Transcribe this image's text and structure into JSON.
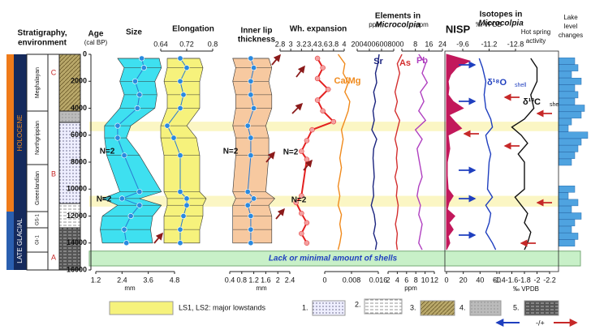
{
  "stratigraphy": {
    "title": [
      "Stratigraphy,",
      "environment"
    ],
    "epochs": [
      "HOLOCENE",
      "LATE GLACIAL"
    ],
    "stages": [
      "Meghalayan",
      "Northgrippian",
      "Greenlandian",
      "GS-1",
      "GI-1"
    ],
    "units": [
      "C",
      "B",
      "A"
    ]
  },
  "age_axis": {
    "label": [
      "Age",
      "(cal BP)"
    ],
    "ylim": [
      0,
      16000
    ],
    "yticks": [
      0,
      2000,
      4000,
      6000,
      8000,
      10000,
      12000,
      14000,
      16000
    ]
  },
  "chart_data": [
    {
      "type": "range",
      "title": [
        "Size"
      ],
      "unit": "mm",
      "tick_side": "bottom",
      "color": "#3ee0f0",
      "xlim": [
        1.2,
        4.8
      ],
      "xticks": [
        1.2,
        2.4,
        3.6,
        4.8
      ],
      "ages": [
        300,
        1000,
        2000,
        3000,
        4000,
        5300,
        6200,
        7500,
        10200,
        10700,
        11200,
        12000,
        13000,
        14000
      ],
      "low": [
        2.2,
        2.5,
        2.3,
        2.5,
        2.3,
        1.6,
        1.6,
        1.7,
        2.3,
        1.5,
        2.2,
        1.5,
        1.4,
        1.5
      ],
      "high": [
        4.1,
        4.2,
        3.9,
        4.0,
        3.9,
        2.8,
        2.6,
        3.2,
        4.2,
        3.2,
        4.2,
        3.8,
        3.7,
        3.8
      ],
      "values": [
        3.3,
        3.4,
        3.0,
        3.2,
        3.1,
        2.2,
        2.2,
        2.5,
        3.2,
        2.4,
        3.2,
        2.8,
        2.5,
        2.6
      ]
    },
    {
      "type": "range",
      "title": [
        "Elongation"
      ],
      "tick_side": "top",
      "color": "#f6f27c",
      "xlim": [
        0.64,
        0.8
      ],
      "xticks": [
        0.64,
        0.72,
        0.8
      ],
      "ages": [
        300,
        1000,
        2000,
        3000,
        4000,
        5300,
        6200,
        7500,
        10200,
        10700,
        11200,
        12000,
        13000,
        14000
      ],
      "low": [
        0.66,
        0.66,
        0.65,
        0.66,
        0.66,
        0.64,
        0.64,
        0.65,
        0.65,
        0.66,
        0.66,
        0.65,
        0.65,
        0.65
      ],
      "high": [
        0.76,
        0.77,
        0.76,
        0.76,
        0.76,
        0.72,
        0.75,
        0.76,
        0.76,
        0.78,
        0.77,
        0.77,
        0.76,
        0.76
      ],
      "values": [
        0.7,
        0.72,
        0.7,
        0.71,
        0.7,
        0.66,
        0.68,
        0.7,
        0.7,
        0.72,
        0.72,
        0.71,
        0.7,
        0.7
      ]
    },
    {
      "type": "range",
      "title": [
        "Inner lip",
        "thickness"
      ],
      "unit": "mm",
      "tick_side": "bottom",
      "color": "#f7c9a0",
      "xlim": [
        0.4,
        2.4
      ],
      "xticks": [
        0.4,
        0.8,
        1.2,
        1.6,
        2,
        2.4
      ],
      "ages": [
        300,
        1000,
        2000,
        3000,
        4000,
        5300,
        6200,
        7500,
        10200,
        10700,
        11200,
        12000,
        13000,
        14000
      ],
      "low": [
        0.5,
        0.6,
        0.5,
        0.6,
        0.6,
        0.5,
        0.6,
        0.6,
        0.5,
        0.6,
        0.5,
        0.5,
        0.5,
        0.5
      ],
      "high": [
        1.7,
        1.8,
        1.7,
        1.8,
        1.8,
        1.6,
        1.7,
        1.7,
        1.6,
        1.9,
        1.7,
        1.8,
        1.8,
        1.8
      ],
      "values": [
        1.1,
        1.2,
        1.1,
        1.1,
        1.2,
        1.0,
        1.1,
        1.1,
        1.0,
        1.2,
        1.0,
        1.1,
        1.1,
        1.1
      ]
    },
    {
      "type": "dots",
      "title": [
        "Wh. expansion"
      ],
      "tick_side": "top",
      "color": "#e32020",
      "xlim": [
        2.8,
        4
      ],
      "xticks": [
        2.8,
        3,
        3.2,
        3.4,
        3.6,
        3.8,
        4
      ],
      "ages": [
        300,
        1000,
        1800,
        2600,
        3400,
        4200,
        5000,
        5600,
        6400,
        7200,
        7800,
        10500,
        11000,
        11800,
        12500,
        13300,
        14000
      ],
      "values": [
        3.5,
        3.6,
        3.5,
        3.7,
        3.5,
        3.6,
        3.8,
        3.4,
        3.3,
        3.2,
        3.3,
        3.2,
        3.1,
        3.2,
        3.3,
        3.2,
        3.3
      ]
    },
    {
      "type": "line",
      "label": "Ca/Mg",
      "tick_side": "bottom",
      "color": "#f08a1c",
      "xlim": [
        0,
        0.016
      ],
      "xticks": [
        0,
        0.008,
        0.016
      ],
      "ages": [
        0,
        700,
        1400,
        2100,
        2800,
        3500,
        4200,
        4900,
        5600,
        6300,
        7000,
        7700,
        8400,
        9100,
        9800,
        10500,
        11200,
        11900,
        12600,
        13300,
        14000,
        14500
      ],
      "values": [
        0.004,
        0.006,
        0.0055,
        0.007,
        0.006,
        0.0075,
        0.007,
        0.006,
        0.005,
        0.0055,
        0.005,
        0.0045,
        0.005,
        0.0045,
        0.004,
        0.0045,
        0.004,
        0.005,
        0.0045,
        0.005,
        0.0045,
        0.004
      ]
    },
    {
      "type": "line",
      "label": "Sr",
      "title": [
        "Elements in",
        "Microcolpia"
      ],
      "unit": "ppm",
      "tick_side": "top",
      "color": "#1a237e",
      "xlim": [
        200,
        800
      ],
      "xticks": [
        200,
        400,
        600,
        800
      ],
      "ages": [
        0,
        700,
        1400,
        2100,
        2800,
        3500,
        4200,
        4900,
        5600,
        6300,
        7000,
        7700,
        8400,
        9100,
        9800,
        10500,
        11200,
        11900,
        12600,
        13300,
        14000,
        14500
      ],
      "values": [
        560,
        540,
        500,
        520,
        470,
        500,
        460,
        480,
        440,
        520,
        470,
        460,
        470,
        480,
        460,
        470,
        430,
        480,
        500,
        470,
        520,
        500
      ]
    },
    {
      "type": "line",
      "label": "As",
      "unit": "ppm",
      "tick_side": "bottom",
      "color": "#d32f2f",
      "xlim": [
        2,
        12
      ],
      "xticks": [
        2,
        4,
        6,
        8,
        10,
        12
      ],
      "ages": [
        0,
        700,
        1400,
        2100,
        2800,
        3500,
        4200,
        4900,
        5600,
        6300,
        7000,
        7700,
        8400,
        9100,
        9800,
        10500,
        11200,
        11900,
        12600,
        13300,
        14000,
        14500
      ],
      "values": [
        5,
        4,
        4.5,
        4,
        3.5,
        4,
        3.5,
        4.5,
        4,
        3.5,
        4,
        3.8,
        4,
        3.5,
        4,
        3.8,
        4.2,
        4,
        3.6,
        4,
        3.8,
        4
      ]
    },
    {
      "type": "line",
      "label": "Pb",
      "unit": "ppm",
      "tick_side": "top",
      "color": "#b040c0",
      "xlim": [
        0,
        24
      ],
      "xticks": [
        0,
        8,
        16,
        24
      ],
      "ages": [
        0,
        700,
        1400,
        2100,
        2800,
        3500,
        4200,
        4900,
        5600,
        6300,
        7000,
        7700,
        8400,
        9100,
        9800,
        10500,
        11200,
        11900,
        12600,
        13300,
        14000,
        14500
      ],
      "values": [
        10,
        14,
        12,
        15,
        11,
        13,
        10,
        14,
        8,
        12,
        9,
        10,
        11,
        12,
        10,
        9,
        11,
        10,
        12,
        11,
        10,
        12
      ]
    },
    {
      "type": "area",
      "title": [
        "NISP"
      ],
      "tick_side": "bottom",
      "color": "#c2185b",
      "xlim": [
        0,
        60
      ],
      "xticks": [
        0,
        20,
        40,
        60
      ],
      "ages": [
        0,
        500,
        1000,
        1500,
        2000,
        2500,
        3000,
        3500,
        4000,
        4500,
        5000,
        5500,
        6000,
        7000,
        8000,
        9000,
        10000,
        10500,
        11000,
        11500,
        12000,
        12500,
        13000,
        13500,
        14000,
        14500
      ],
      "values": [
        0,
        28,
        12,
        5,
        2,
        3,
        2,
        8,
        20,
        3,
        10,
        18,
        2,
        4,
        1,
        1,
        2,
        8,
        3,
        1,
        10,
        3,
        8,
        2,
        4,
        0
      ]
    },
    {
      "type": "line",
      "label": "δ¹⁸O",
      "sub": "shell",
      "title": [
        "Isotopes in",
        "Microcolpia"
      ],
      "unit": "‰ VPDB",
      "tick_side": "top",
      "color": "#1f3fbf",
      "xlim": [
        -9.6,
        -12.8
      ],
      "xticks": [
        -9.6,
        -11.2,
        -12.8
      ],
      "ages": [
        300,
        1000,
        2000,
        3000,
        4000,
        4800,
        5400,
        6000,
        6600,
        7400,
        8000,
        10000,
        10600,
        11200,
        11800,
        12500,
        13200,
        14000,
        14500
      ],
      "values": [
        -10.6,
        -10.8,
        -11,
        -10.9,
        -11,
        -11.3,
        -11.4,
        -11,
        -11.1,
        -11.3,
        -11.2,
        -11.1,
        -11.4,
        -11,
        -11.3,
        -11.2,
        -11,
        -11.4,
        -11.6
      ]
    },
    {
      "type": "line",
      "label": "δ¹³C",
      "sub": "shell",
      "title": [
        "Hot spring",
        "activity"
      ],
      "unit": "‰ VPDB",
      "tick_side": "bottom",
      "color": "#111111",
      "xlim": [
        -1.4,
        -2.2
      ],
      "xticks": [
        -1.4,
        -1.6,
        -1.8,
        -2,
        -2.2
      ],
      "ages": [
        300,
        1000,
        2000,
        3000,
        4000,
        4800,
        5400,
        6000,
        6600,
        7400,
        8000,
        10000,
        10600,
        11200,
        11800,
        12500,
        13200,
        14000,
        14500
      ],
      "values": [
        -1.9,
        -2,
        -2,
        -1.9,
        -1.95,
        -1.8,
        -1.6,
        -1.75,
        -1.85,
        -1.7,
        -1.8,
        -1.8,
        -1.65,
        -1.75,
        -1.85,
        -1.8,
        -1.9,
        -1.85,
        -1.8
      ]
    },
    {
      "type": "bars",
      "title": [
        "Lake",
        "level",
        "changes"
      ],
      "color": "#4fa3e0",
      "ages": [
        500,
        1000,
        1500,
        2000,
        2500,
        3000,
        3500,
        4000,
        4500,
        5000,
        5500,
        6000,
        6500,
        7000,
        7500,
        8000,
        10000,
        10500,
        11000,
        11500,
        12000,
        12500,
        13000,
        13500,
        14000
      ],
      "values": [
        5,
        6,
        4,
        7,
        5,
        6,
        5,
        8,
        7,
        4,
        3,
        9,
        7,
        6,
        5,
        4,
        5,
        3,
        6,
        4,
        7,
        5,
        4,
        6,
        5
      ]
    }
  ],
  "annotations": [
    "N=2",
    "N=2",
    "N=2",
    "N=2",
    "N=2"
  ],
  "lowstands": [
    [
      5000,
      5700
    ],
    [
      10500,
      11300
    ]
  ],
  "no_shells": {
    "range": [
      14600,
      15700
    ],
    "label": "Lack or minimal amount of shells"
  },
  "legend": {
    "lowstand": "LS1, LS2: major lowstands",
    "items": [
      "1.",
      "2.",
      "3.",
      "4.",
      "5."
    ],
    "arrows": "-/+"
  }
}
